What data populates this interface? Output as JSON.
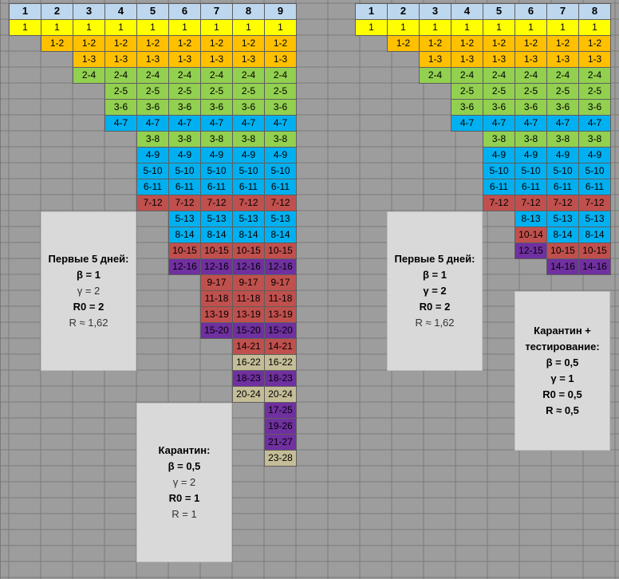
{
  "colors": {
    "header": "#bdd7ee",
    "yellow": "#ffff00",
    "orange": "#ffc000",
    "green": "#92d050",
    "blue": "#00b0f0",
    "red": "#c0504d",
    "purple": "#7030a0",
    "olive": "#c4bd97",
    "empty": "#9d9d9d"
  },
  "left_table": {
    "headers": [
      "1",
      "2",
      "3",
      "4",
      "5",
      "6",
      "7",
      "8",
      "9"
    ],
    "rows": [
      [
        [
          "1",
          "yellow"
        ],
        [
          "1",
          "yellow"
        ],
        [
          "1",
          "yellow"
        ],
        [
          "1",
          "yellow"
        ],
        [
          "1",
          "yellow"
        ],
        [
          "1",
          "yellow"
        ],
        [
          "1",
          "yellow"
        ],
        [
          "1",
          "yellow"
        ],
        [
          "1",
          "yellow"
        ]
      ],
      [
        null,
        [
          "1-2",
          "orange"
        ],
        [
          "1-2",
          "orange"
        ],
        [
          "1-2",
          "orange"
        ],
        [
          "1-2",
          "orange"
        ],
        [
          "1-2",
          "orange"
        ],
        [
          "1-2",
          "orange"
        ],
        [
          "1-2",
          "orange"
        ],
        [
          "1-2",
          "orange"
        ]
      ],
      [
        null,
        null,
        [
          "1-3",
          "orange"
        ],
        [
          "1-3",
          "orange"
        ],
        [
          "1-3",
          "orange"
        ],
        [
          "1-3",
          "orange"
        ],
        [
          "1-3",
          "orange"
        ],
        [
          "1-3",
          "orange"
        ],
        [
          "1-3",
          "orange"
        ]
      ],
      [
        null,
        null,
        [
          "2-4",
          "green"
        ],
        [
          "2-4",
          "green"
        ],
        [
          "2-4",
          "green"
        ],
        [
          "2-4",
          "green"
        ],
        [
          "2-4",
          "green"
        ],
        [
          "2-4",
          "green"
        ],
        [
          "2-4",
          "green"
        ]
      ],
      [
        null,
        null,
        null,
        [
          "2-5",
          "green"
        ],
        [
          "2-5",
          "green"
        ],
        [
          "2-5",
          "green"
        ],
        [
          "2-5",
          "green"
        ],
        [
          "2-5",
          "green"
        ],
        [
          "2-5",
          "green"
        ]
      ],
      [
        null,
        null,
        null,
        [
          "3-6",
          "green"
        ],
        [
          "3-6",
          "green"
        ],
        [
          "3-6",
          "green"
        ],
        [
          "3-6",
          "green"
        ],
        [
          "3-6",
          "green"
        ],
        [
          "3-6",
          "green"
        ]
      ],
      [
        null,
        null,
        null,
        [
          "4-7",
          "blue"
        ],
        [
          "4-7",
          "blue"
        ],
        [
          "4-7",
          "blue"
        ],
        [
          "4-7",
          "blue"
        ],
        [
          "4-7",
          "blue"
        ],
        [
          "4-7",
          "blue"
        ]
      ],
      [
        null,
        null,
        null,
        null,
        [
          "3-8",
          "green"
        ],
        [
          "3-8",
          "green"
        ],
        [
          "3-8",
          "green"
        ],
        [
          "3-8",
          "green"
        ],
        [
          "3-8",
          "green"
        ]
      ],
      [
        null,
        null,
        null,
        null,
        [
          "4-9",
          "blue"
        ],
        [
          "4-9",
          "blue"
        ],
        [
          "4-9",
          "blue"
        ],
        [
          "4-9",
          "blue"
        ],
        [
          "4-9",
          "blue"
        ]
      ],
      [
        null,
        null,
        null,
        null,
        [
          "5-10",
          "blue"
        ],
        [
          "5-10",
          "blue"
        ],
        [
          "5-10",
          "blue"
        ],
        [
          "5-10",
          "blue"
        ],
        [
          "5-10",
          "blue"
        ]
      ],
      [
        null,
        null,
        null,
        null,
        [
          "6-11",
          "blue"
        ],
        [
          "6-11",
          "blue"
        ],
        [
          "6-11",
          "blue"
        ],
        [
          "6-11",
          "blue"
        ],
        [
          "6-11",
          "blue"
        ]
      ],
      [
        null,
        null,
        null,
        null,
        [
          "7-12",
          "red"
        ],
        [
          "7-12",
          "red"
        ],
        [
          "7-12",
          "red"
        ],
        [
          "7-12",
          "red"
        ],
        [
          "7-12",
          "red"
        ]
      ],
      [
        null,
        null,
        null,
        null,
        null,
        [
          "5-13",
          "blue"
        ],
        [
          "5-13",
          "blue"
        ],
        [
          "5-13",
          "blue"
        ],
        [
          "5-13",
          "blue"
        ]
      ],
      [
        null,
        null,
        null,
        null,
        null,
        [
          "8-14",
          "blue"
        ],
        [
          "8-14",
          "blue"
        ],
        [
          "8-14",
          "blue"
        ],
        [
          "8-14",
          "blue"
        ]
      ],
      [
        null,
        null,
        null,
        null,
        null,
        [
          "10-15",
          "red"
        ],
        [
          "10-15",
          "red"
        ],
        [
          "10-15",
          "red"
        ],
        [
          "10-15",
          "red"
        ]
      ],
      [
        null,
        null,
        null,
        null,
        null,
        [
          "12-16",
          "purple"
        ],
        [
          "12-16",
          "purple"
        ],
        [
          "12-16",
          "purple"
        ],
        [
          "12-16",
          "purple"
        ]
      ],
      [
        null,
        null,
        null,
        null,
        null,
        null,
        [
          "9-17",
          "red"
        ],
        [
          "9-17",
          "red"
        ],
        [
          "9-17",
          "red"
        ]
      ],
      [
        null,
        null,
        null,
        null,
        null,
        null,
        [
          "11-18",
          "red"
        ],
        [
          "11-18",
          "red"
        ],
        [
          "11-18",
          "red"
        ]
      ],
      [
        null,
        null,
        null,
        null,
        null,
        null,
        [
          "13-19",
          "red"
        ],
        [
          "13-19",
          "red"
        ],
        [
          "13-19",
          "red"
        ]
      ],
      [
        null,
        null,
        null,
        null,
        null,
        null,
        [
          "15-20",
          "purple"
        ],
        [
          "15-20",
          "purple"
        ],
        [
          "15-20",
          "purple"
        ]
      ],
      [
        null,
        null,
        null,
        null,
        null,
        null,
        null,
        [
          "14-21",
          "red"
        ],
        [
          "14-21",
          "red"
        ]
      ],
      [
        null,
        null,
        null,
        null,
        null,
        null,
        null,
        [
          "16-22",
          "olive"
        ],
        [
          "16-22",
          "olive"
        ]
      ],
      [
        null,
        null,
        null,
        null,
        null,
        null,
        null,
        [
          "18-23",
          "purple"
        ],
        [
          "18-23",
          "purple"
        ]
      ],
      [
        null,
        null,
        null,
        null,
        null,
        null,
        null,
        [
          "20-24",
          "olive"
        ],
        [
          "20-24",
          "olive"
        ]
      ],
      [
        null,
        null,
        null,
        null,
        null,
        null,
        null,
        null,
        [
          "17-25",
          "purple"
        ]
      ],
      [
        null,
        null,
        null,
        null,
        null,
        null,
        null,
        null,
        [
          "19-26",
          "purple"
        ]
      ],
      [
        null,
        null,
        null,
        null,
        null,
        null,
        null,
        null,
        [
          "21-27",
          "purple"
        ]
      ],
      [
        null,
        null,
        null,
        null,
        null,
        null,
        null,
        null,
        [
          "23-28",
          "olive"
        ]
      ]
    ]
  },
  "right_table": {
    "headers": [
      "1",
      "2",
      "3",
      "4",
      "5",
      "6",
      "7",
      "8"
    ],
    "rows": [
      [
        [
          "1",
          "yellow"
        ],
        [
          "1",
          "yellow"
        ],
        [
          "1",
          "yellow"
        ],
        [
          "1",
          "yellow"
        ],
        [
          "1",
          "yellow"
        ],
        [
          "1",
          "yellow"
        ],
        [
          "1",
          "yellow"
        ],
        [
          "1",
          "yellow"
        ]
      ],
      [
        null,
        [
          "1-2",
          "orange"
        ],
        [
          "1-2",
          "orange"
        ],
        [
          "1-2",
          "orange"
        ],
        [
          "1-2",
          "orange"
        ],
        [
          "1-2",
          "orange"
        ],
        [
          "1-2",
          "orange"
        ],
        [
          "1-2",
          "orange"
        ]
      ],
      [
        null,
        null,
        [
          "1-3",
          "orange"
        ],
        [
          "1-3",
          "orange"
        ],
        [
          "1-3",
          "orange"
        ],
        [
          "1-3",
          "orange"
        ],
        [
          "1-3",
          "orange"
        ],
        [
          "1-3",
          "orange"
        ]
      ],
      [
        null,
        null,
        [
          "2-4",
          "green"
        ],
        [
          "2-4",
          "green"
        ],
        [
          "2-4",
          "green"
        ],
        [
          "2-4",
          "green"
        ],
        [
          "2-4",
          "green"
        ],
        [
          "2-4",
          "green"
        ]
      ],
      [
        null,
        null,
        null,
        [
          "2-5",
          "green"
        ],
        [
          "2-5",
          "green"
        ],
        [
          "2-5",
          "green"
        ],
        [
          "2-5",
          "green"
        ],
        [
          "2-5",
          "green"
        ]
      ],
      [
        null,
        null,
        null,
        [
          "3-6",
          "green"
        ],
        [
          "3-6",
          "green"
        ],
        [
          "3-6",
          "green"
        ],
        [
          "3-6",
          "green"
        ],
        [
          "3-6",
          "green"
        ]
      ],
      [
        null,
        null,
        null,
        [
          "4-7",
          "blue"
        ],
        [
          "4-7",
          "blue"
        ],
        [
          "4-7",
          "blue"
        ],
        [
          "4-7",
          "blue"
        ],
        [
          "4-7",
          "blue"
        ]
      ],
      [
        null,
        null,
        null,
        null,
        [
          "3-8",
          "green"
        ],
        [
          "3-8",
          "green"
        ],
        [
          "3-8",
          "green"
        ],
        [
          "3-8",
          "green"
        ]
      ],
      [
        null,
        null,
        null,
        null,
        [
          "4-9",
          "blue"
        ],
        [
          "4-9",
          "blue"
        ],
        [
          "4-9",
          "blue"
        ],
        [
          "4-9",
          "blue"
        ]
      ],
      [
        null,
        null,
        null,
        null,
        [
          "5-10",
          "blue"
        ],
        [
          "5-10",
          "blue"
        ],
        [
          "5-10",
          "blue"
        ],
        [
          "5-10",
          "blue"
        ]
      ],
      [
        null,
        null,
        null,
        null,
        [
          "6-11",
          "blue"
        ],
        [
          "6-11",
          "blue"
        ],
        [
          "6-11",
          "blue"
        ],
        [
          "6-11",
          "blue"
        ]
      ],
      [
        null,
        null,
        null,
        null,
        [
          "7-12",
          "red"
        ],
        [
          "7-12",
          "red"
        ],
        [
          "7-12",
          "red"
        ],
        [
          "7-12",
          "red"
        ]
      ],
      [
        null,
        null,
        null,
        null,
        null,
        [
          "8-13",
          "blue"
        ],
        [
          "5-13",
          "blue"
        ],
        [
          "5-13",
          "blue"
        ]
      ],
      [
        null,
        null,
        null,
        null,
        null,
        [
          "10-14",
          "red"
        ],
        [
          "8-14",
          "blue"
        ],
        [
          "8-14",
          "blue"
        ]
      ],
      [
        null,
        null,
        null,
        null,
        null,
        [
          "12-15",
          "purple"
        ],
        [
          "10-15",
          "red"
        ],
        [
          "10-15",
          "red"
        ]
      ],
      [
        null,
        null,
        null,
        null,
        null,
        null,
        [
          "14-16",
          "purple"
        ],
        [
          "14-16",
          "purple"
        ]
      ]
    ]
  },
  "boxes": {
    "first5_left": {
      "title": "Первые 5 дней:",
      "beta": "β = 1",
      "gamma": "γ = 2",
      "r0": "R0 = 2",
      "r": "R ≈ 1,62"
    },
    "first5_right": {
      "title": "Первые 5 дней:",
      "beta": "β = 1",
      "gamma": "γ = 2",
      "r0": "R0 = 2",
      "r": "R ≈ 1,62"
    },
    "quarantine": {
      "title": "Карантин:",
      "beta": "β = 0,5",
      "gamma": "γ = 2",
      "r0": "R0 = 1",
      "r": "R = 1"
    },
    "quarantine_testing": {
      "title1": "Карантин +",
      "title2": "тестирование:",
      "beta": "β = 0,5",
      "gamma": "γ = 1",
      "r0": "R0 = 0,5",
      "r": "R ≈ 0,5"
    }
  }
}
